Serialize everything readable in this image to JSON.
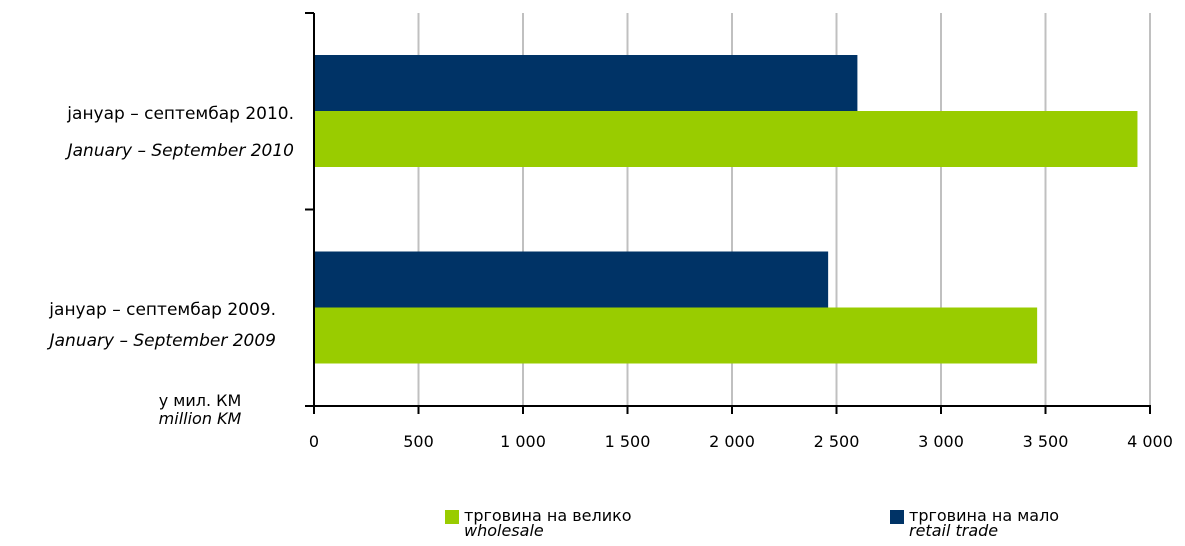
{
  "chart_data": {
    "type": "bar",
    "orientation": "horizontal",
    "categories": [
      {
        "label": "јануар –  септембар  2010.",
        "label_en": "January – September 2010"
      },
      {
        "label": "јануар – септембар 2009.",
        "label_en": "January – September 2009"
      }
    ],
    "series": [
      {
        "name": "трговина на мало",
        "name_en": "retail trade",
        "color": "#003366",
        "values": [
          2600,
          2460
        ]
      },
      {
        "name": "трговина на велико",
        "name_en": "wholesale",
        "color": "#99CC00",
        "values": [
          3940,
          3460
        ]
      }
    ],
    "xlim": [
      0,
      4000
    ],
    "xticks": [
      0,
      500,
      1000,
      1500,
      2000,
      2500,
      3000,
      3500,
      4000
    ],
    "xtick_labels": [
      "0",
      "500",
      "1 000",
      "1 500",
      "2 000",
      "2 500",
      "3 000",
      "3 500",
      "4 000"
    ],
    "unit_label": "у мил. КМ",
    "unit_label_en": "million KM",
    "grid": "vertical",
    "legend_position": "bottom"
  },
  "legend": [
    {
      "label": "трговина на велико",
      "label_en": "wholesale",
      "color": "#99CC00"
    },
    {
      "label": "трговина на мало",
      "label_en": "retail trade",
      "color": "#003366"
    }
  ]
}
